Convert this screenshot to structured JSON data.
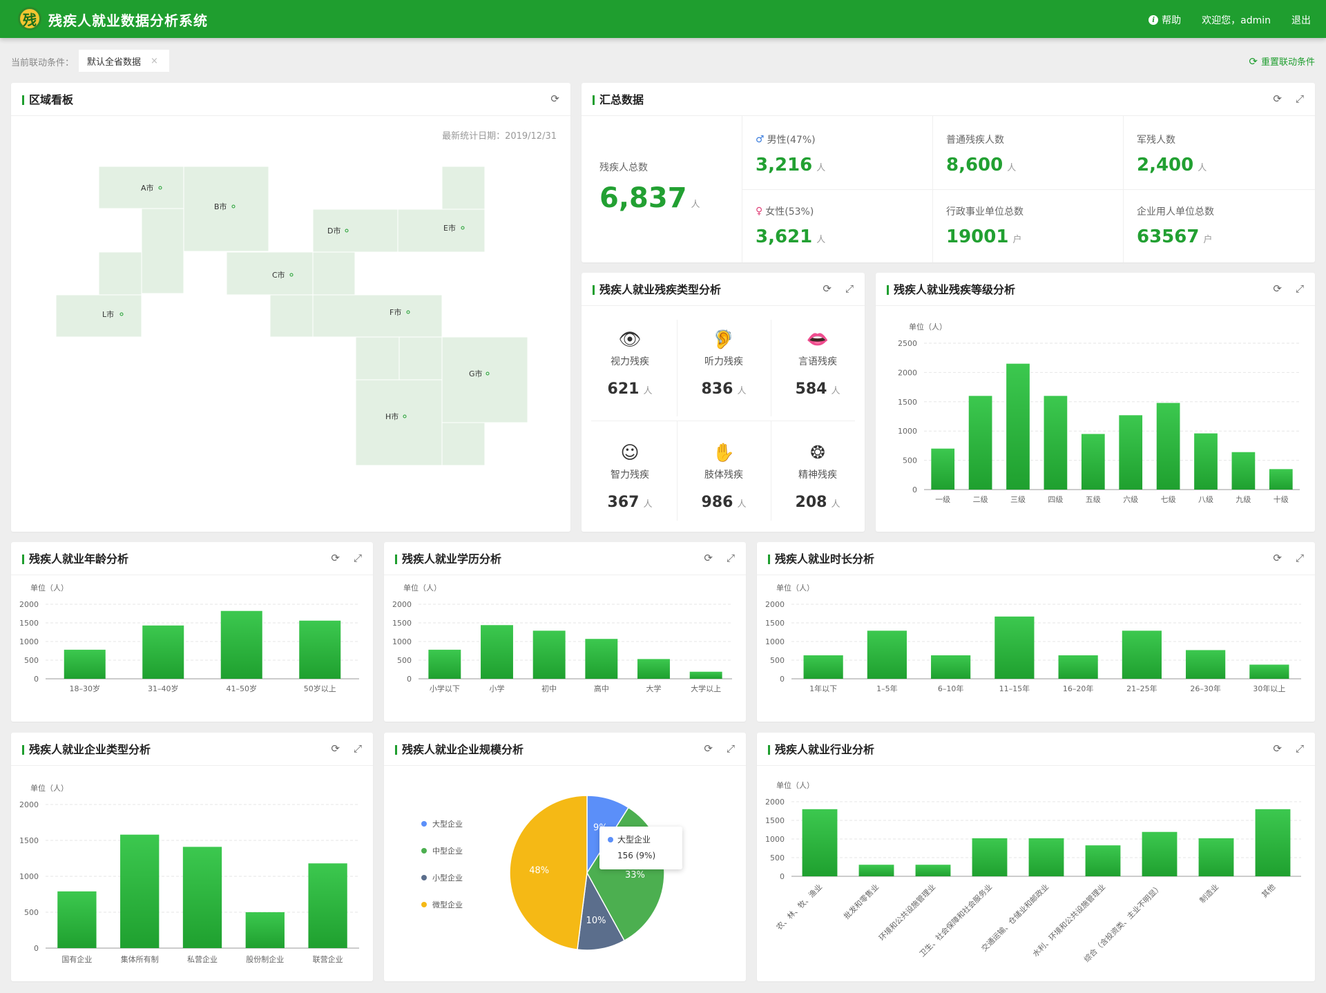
{
  "app": {
    "title": "残疾人就业数据分析系统",
    "help": "帮助",
    "welcome": "欢迎您，admin",
    "logout": "退出"
  },
  "filter": {
    "label": "当前联动条件：",
    "tag": "默认全省数据",
    "reset": "重置联动条件"
  },
  "map_panel": {
    "title": "区域看板",
    "date": "最新统计日期：2019/12/31",
    "cities": [
      "A市",
      "B市",
      "C市",
      "D市",
      "E市",
      "F市",
      "G市",
      "H市",
      "L市"
    ]
  },
  "summary": {
    "title": "汇总数据",
    "total": {
      "label": "残疾人总数",
      "value": "6,837",
      "unit": "人"
    },
    "male": {
      "label": "男性(47%)",
      "value": "3,216",
      "unit": "人"
    },
    "female": {
      "label": "女性(53%)",
      "value": "3,621",
      "unit": "人"
    },
    "ordinary": {
      "label": "普通残疾人数",
      "value": "8,600",
      "unit": "人"
    },
    "military": {
      "label": "军残人数",
      "value": "2,400",
      "unit": "人"
    },
    "admin_units": {
      "label": "行政事业单位总数",
      "value": "19001",
      "unit": "户"
    },
    "enterprise_units": {
      "label": "企业用人单位总数",
      "value": "63567",
      "unit": "户"
    }
  },
  "disability_types": {
    "title": "残疾人就业残疾类型分析",
    "items": [
      {
        "label": "视力残疾",
        "value": "621",
        "unit": "人",
        "icon": "eye-icon"
      },
      {
        "label": "听力残疾",
        "value": "836",
        "unit": "人",
        "icon": "ear-icon"
      },
      {
        "label": "言语残疾",
        "value": "584",
        "unit": "人",
        "icon": "lips-icon"
      },
      {
        "label": "智力残疾",
        "value": "367",
        "unit": "人",
        "icon": "head-icon"
      },
      {
        "label": "肢体残疾",
        "value": "986",
        "unit": "人",
        "icon": "hand-icon"
      },
      {
        "label": "精神残疾",
        "value": "208",
        "unit": "人",
        "icon": "brain-icon"
      }
    ]
  },
  "colors": {
    "primary": "#1f9e2f",
    "bar_top": "#3cc84f",
    "bar_bottom": "#1fa02f",
    "map_fill": "#e3f0e3",
    "pie": [
      "#5b8ff9",
      "#4caf50",
      "#5b6e8c",
      "#f5b915"
    ]
  },
  "chart_data": [
    {
      "id": "grade",
      "title": "残疾人就业残疾等级分析",
      "type": "bar",
      "unit_label": "单位（人）",
      "categories": [
        "一级",
        "二级",
        "三级",
        "四级",
        "五级",
        "六级",
        "七级",
        "八级",
        "九级",
        "十级"
      ],
      "values": [
        700,
        1600,
        2150,
        1600,
        950,
        1270,
        1480,
        960,
        640,
        350
      ],
      "ylim": [
        0,
        2500
      ],
      "yticks": [
        0,
        500,
        1000,
        1500,
        2000,
        2500
      ]
    },
    {
      "id": "age",
      "title": "残疾人就业年龄分析",
      "type": "bar",
      "unit_label": "单位（人）",
      "categories": [
        "18–30岁",
        "31–40岁",
        "41–50岁",
        "50岁以上"
      ],
      "values": [
        780,
        1430,
        1820,
        1560
      ],
      "ylim": [
        0,
        2000
      ],
      "yticks": [
        0,
        500,
        1000,
        1500,
        2000
      ]
    },
    {
      "id": "education",
      "title": "残疾人就业学历分析",
      "type": "bar",
      "unit_label": "单位（人）",
      "categories": [
        "小学以下",
        "小学",
        "初中",
        "高中",
        "大学",
        "大学以上"
      ],
      "values": [
        780,
        1440,
        1290,
        1070,
        530,
        190
      ],
      "ylim": [
        0,
        2000
      ],
      "yticks": [
        0,
        500,
        1000,
        1500,
        2000
      ]
    },
    {
      "id": "duration",
      "title": "残疾人就业时长分析",
      "type": "bar",
      "unit_label": "单位（人）",
      "categories": [
        "1年以下",
        "1–5年",
        "6–10年",
        "11–15年",
        "16–20年",
        "21–25年",
        "26–30年",
        "30年以上"
      ],
      "values": [
        630,
        1290,
        630,
        1670,
        630,
        1290,
        770,
        380
      ],
      "ylim": [
        0,
        2000
      ],
      "yticks": [
        0,
        500,
        1000,
        1500,
        2000
      ]
    },
    {
      "id": "enterprise_type",
      "title": "残疾人就业企业类型分析",
      "type": "bar",
      "unit_label": "单位（人）",
      "categories": [
        "国有企业",
        "集体所有制",
        "私营企业",
        "股份制企业",
        "联营企业"
      ],
      "values": [
        790,
        1580,
        1410,
        500,
        1180
      ],
      "ylim": [
        0,
        2000
      ],
      "yticks": [
        0,
        500,
        1000,
        1500,
        2000
      ]
    },
    {
      "id": "enterprise_scale",
      "title": "残疾人就业企业规模分析",
      "type": "pie",
      "labels": [
        "大型企业",
        "中型企业",
        "小型企业",
        "微型企业"
      ],
      "values": [
        9,
        33,
        10,
        48
      ],
      "slice_labels": [
        "9%",
        "33%",
        "10%",
        "48%"
      ],
      "tooltip": {
        "name": "大型企业",
        "text": "156 (9%)"
      }
    },
    {
      "id": "industry",
      "title": "残疾人就业行业分析",
      "type": "bar",
      "unit_label": "单位（人）",
      "categories": [
        "农、林、牧、渔业",
        "批发和零售业",
        "环境和公共设施管理业",
        "卫生、社会保障和社会服务业",
        "交通运输、仓储业和邮政业",
        "水利、环境和公共设施管理业",
        "综合（含投资类、主业不明显）",
        "制造业",
        "其他"
      ],
      "values": [
        1800,
        310,
        310,
        1020,
        1020,
        830,
        1190,
        1020,
        1800
      ],
      "ylim": [
        0,
        2000
      ],
      "yticks": [
        0,
        500,
        1000,
        1500,
        2000
      ]
    }
  ]
}
